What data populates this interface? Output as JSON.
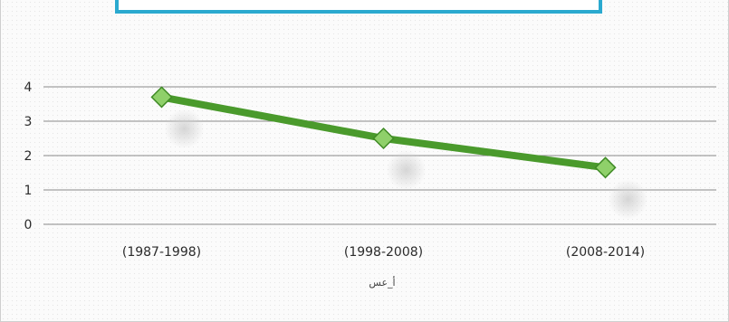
{
  "chart_data": {
    "type": "line",
    "title": "",
    "categories": [
      "(1987-1998)",
      "(1998-2008)",
      "(2008-2014)"
    ],
    "series": [
      {
        "values": [
          3.7,
          2.5,
          1.65
        ],
        "color": "#4a9a2c",
        "marker_color": "#8fd06a"
      }
    ],
    "xlabel": "أ_عس",
    "ylabel": "",
    "ylim": [
      0,
      4
    ],
    "yticks": [
      0,
      1,
      2,
      3,
      4
    ],
    "grid": true,
    "legend": "none"
  }
}
